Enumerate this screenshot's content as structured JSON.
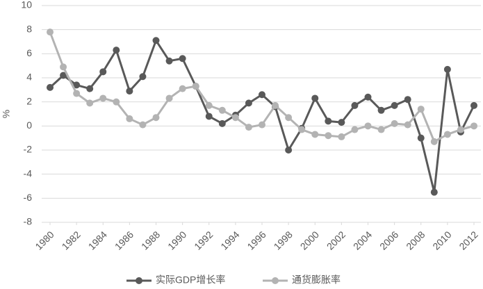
{
  "chart_data": {
    "type": "line",
    "y_label": "%",
    "x": [
      1980,
      1981,
      1982,
      1983,
      1984,
      1985,
      1986,
      1987,
      1988,
      1989,
      1990,
      1991,
      1992,
      1993,
      1994,
      1995,
      1996,
      1997,
      1998,
      1999,
      2000,
      2001,
      2002,
      2003,
      2004,
      2005,
      2006,
      2007,
      2008,
      2009,
      2010,
      2011,
      2012
    ],
    "series": [
      {
        "name": "实际GDP增长率",
        "color": "#595959",
        "values": [
          3.2,
          4.2,
          3.4,
          3.1,
          4.5,
          6.3,
          2.9,
          4.1,
          7.1,
          5.4,
          5.6,
          3.3,
          0.8,
          0.2,
          0.9,
          1.9,
          2.6,
          1.6,
          -2.0,
          -0.2,
          2.3,
          0.4,
          0.3,
          1.7,
          2.4,
          1.3,
          1.7,
          2.2,
          -1.0,
          -5.5,
          4.7,
          -0.5,
          1.7
        ]
      },
      {
        "name": "通货膨胀率",
        "color": "#b3b3b3",
        "values": [
          7.8,
          4.9,
          2.7,
          1.9,
          2.3,
          2.0,
          0.6,
          0.1,
          0.7,
          2.3,
          3.1,
          3.3,
          1.7,
          1.3,
          0.7,
          -0.1,
          0.1,
          1.7,
          0.7,
          -0.3,
          -0.7,
          -0.8,
          -0.9,
          -0.3,
          0.0,
          -0.3,
          0.2,
          0.1,
          1.4,
          -1.3,
          -0.7,
          -0.3,
          0.0
        ]
      }
    ],
    "xlim": [
      1980,
      2012
    ],
    "xticks": [
      1980,
      1982,
      1984,
      1986,
      1988,
      1990,
      1992,
      1994,
      1996,
      1998,
      2000,
      2002,
      2004,
      2006,
      2008,
      2010,
      2012
    ],
    "ylim": [
      -8,
      10
    ],
    "yticks": [
      10,
      8,
      6,
      4,
      2,
      0,
      -2,
      -4,
      -6,
      -8
    ],
    "grid": true,
    "legend": "bottom"
  }
}
